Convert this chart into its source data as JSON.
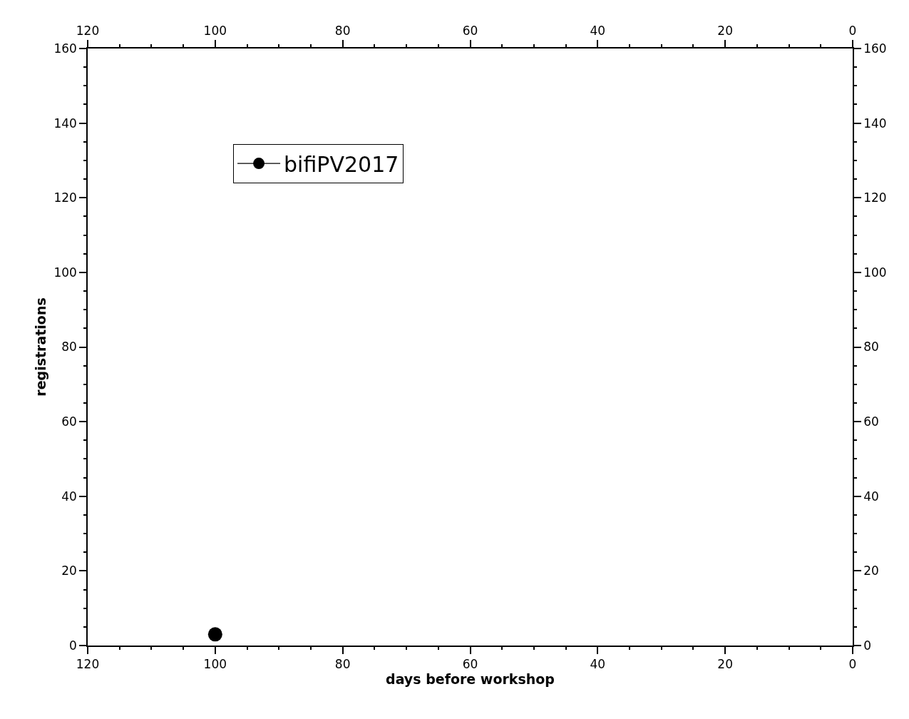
{
  "chart_data": {
    "type": "line",
    "xlabel": "days before workshop",
    "ylabel": "registrations",
    "x": [
      100
    ],
    "series": [
      {
        "name": "bifiPV2017",
        "color": "#000000",
        "values": [
          3
        ]
      }
    ],
    "marker": "circle",
    "line_style": "solid",
    "legend": "top left",
    "grid": false,
    "xlim": [
      120,
      0
    ],
    "xticks": [
      120,
      {
        "value": 115,
        "label": null
      },
      {
        "value": 110,
        "label": null
      },
      {
        "value": 105,
        "label": null
      },
      100,
      {
        "value": 95,
        "label": null
      },
      {
        "value": 90,
        "label": null
      },
      {
        "value": 85,
        "label": null
      },
      80,
      {
        "value": 75,
        "label": null
      },
      {
        "value": 70,
        "label": null
      },
      {
        "value": 65,
        "label": null
      },
      60,
      {
        "value": 55,
        "label": null
      },
      {
        "value": 50,
        "label": null
      },
      {
        "value": 45,
        "label": null
      },
      40,
      {
        "value": 35,
        "label": null
      },
      {
        "value": 30,
        "label": null
      },
      {
        "value": 25,
        "label": null
      },
      20,
      {
        "value": 15,
        "label": null
      },
      {
        "value": 10,
        "label": null
      },
      {
        "value": 5,
        "label": null
      },
      0
    ],
    "x2lim": [
      120,
      0
    ],
    "x2ticks": [
      120,
      {
        "value": 115,
        "label": null
      },
      {
        "value": 110,
        "label": null
      },
      {
        "value": 105,
        "label": null
      },
      100,
      {
        "value": 95,
        "label": null
      },
      {
        "value": 90,
        "label": null
      },
      {
        "value": 85,
        "label": null
      },
      80,
      {
        "value": 75,
        "label": null
      },
      {
        "value": 70,
        "label": null
      },
      {
        "value": 65,
        "label": null
      },
      60,
      {
        "value": 55,
        "label": null
      },
      {
        "value": 50,
        "label": null
      },
      {
        "value": 45,
        "label": null
      },
      40,
      {
        "value": 35,
        "label": null
      },
      {
        "value": 30,
        "label": null
      },
      {
        "value": 25,
        "label": null
      },
      20,
      {
        "value": 15,
        "label": null
      },
      {
        "value": 10,
        "label": null
      },
      {
        "value": 5,
        "label": null
      },
      0
    ],
    "ylim": [
      0,
      160
    ],
    "yticks": [
      0,
      {
        "value": 5,
        "label": null
      },
      {
        "value": 10,
        "label": null
      },
      {
        "value": 15,
        "label": null
      },
      20,
      {
        "value": 25,
        "label": null
      },
      {
        "value": 30,
        "label": null
      },
      {
        "value": 35,
        "label": null
      },
      40,
      {
        "value": 45,
        "label": null
      },
      {
        "value": 50,
        "label": null
      },
      {
        "value": 55,
        "label": null
      },
      60,
      {
        "value": 65,
        "label": null
      },
      {
        "value": 70,
        "label": null
      },
      {
        "value": 75,
        "label": null
      },
      80,
      {
        "value": 85,
        "label": null
      },
      {
        "value": 90,
        "label": null
      },
      {
        "value": 95,
        "label": null
      },
      100,
      {
        "value": 105,
        "label": null
      },
      {
        "value": 110,
        "label": null
      },
      {
        "value": 115,
        "label": null
      },
      120,
      {
        "value": 125,
        "label": null
      },
      {
        "value": 130,
        "label": null
      },
      {
        "value": 135,
        "label": null
      },
      140,
      {
        "value": 145,
        "label": null
      },
      {
        "value": 150,
        "label": null
      },
      {
        "value": 155,
        "label": null
      },
      160
    ],
    "y2lim": [
      0,
      160
    ],
    "y2ticks": [
      0,
      {
        "value": 5,
        "label": null
      },
      {
        "value": 10,
        "label": null
      },
      {
        "value": 15,
        "label": null
      },
      20,
      {
        "value": 25,
        "label": null
      },
      {
        "value": 30,
        "label": null
      },
      {
        "value": 35,
        "label": null
      },
      40,
      {
        "value": 45,
        "label": null
      },
      {
        "value": 50,
        "label": null
      },
      {
        "value": 55,
        "label": null
      },
      60,
      {
        "value": 65,
        "label": null
      },
      {
        "value": 70,
        "label": null
      },
      {
        "value": 75,
        "label": null
      },
      80,
      {
        "value": 85,
        "label": null
      },
      {
        "value": 90,
        "label": null
      },
      {
        "value": 95,
        "label": null
      },
      100,
      {
        "value": 105,
        "label": null
      },
      {
        "value": 110,
        "label": null
      },
      {
        "value": 115,
        "label": null
      },
      120,
      {
        "value": 125,
        "label": null
      },
      {
        "value": 130,
        "label": null
      },
      {
        "value": 135,
        "label": null
      },
      140,
      {
        "value": 145,
        "label": null
      },
      {
        "value": 150,
        "label": null
      },
      {
        "value": 155,
        "label": null
      },
      160
    ]
  }
}
